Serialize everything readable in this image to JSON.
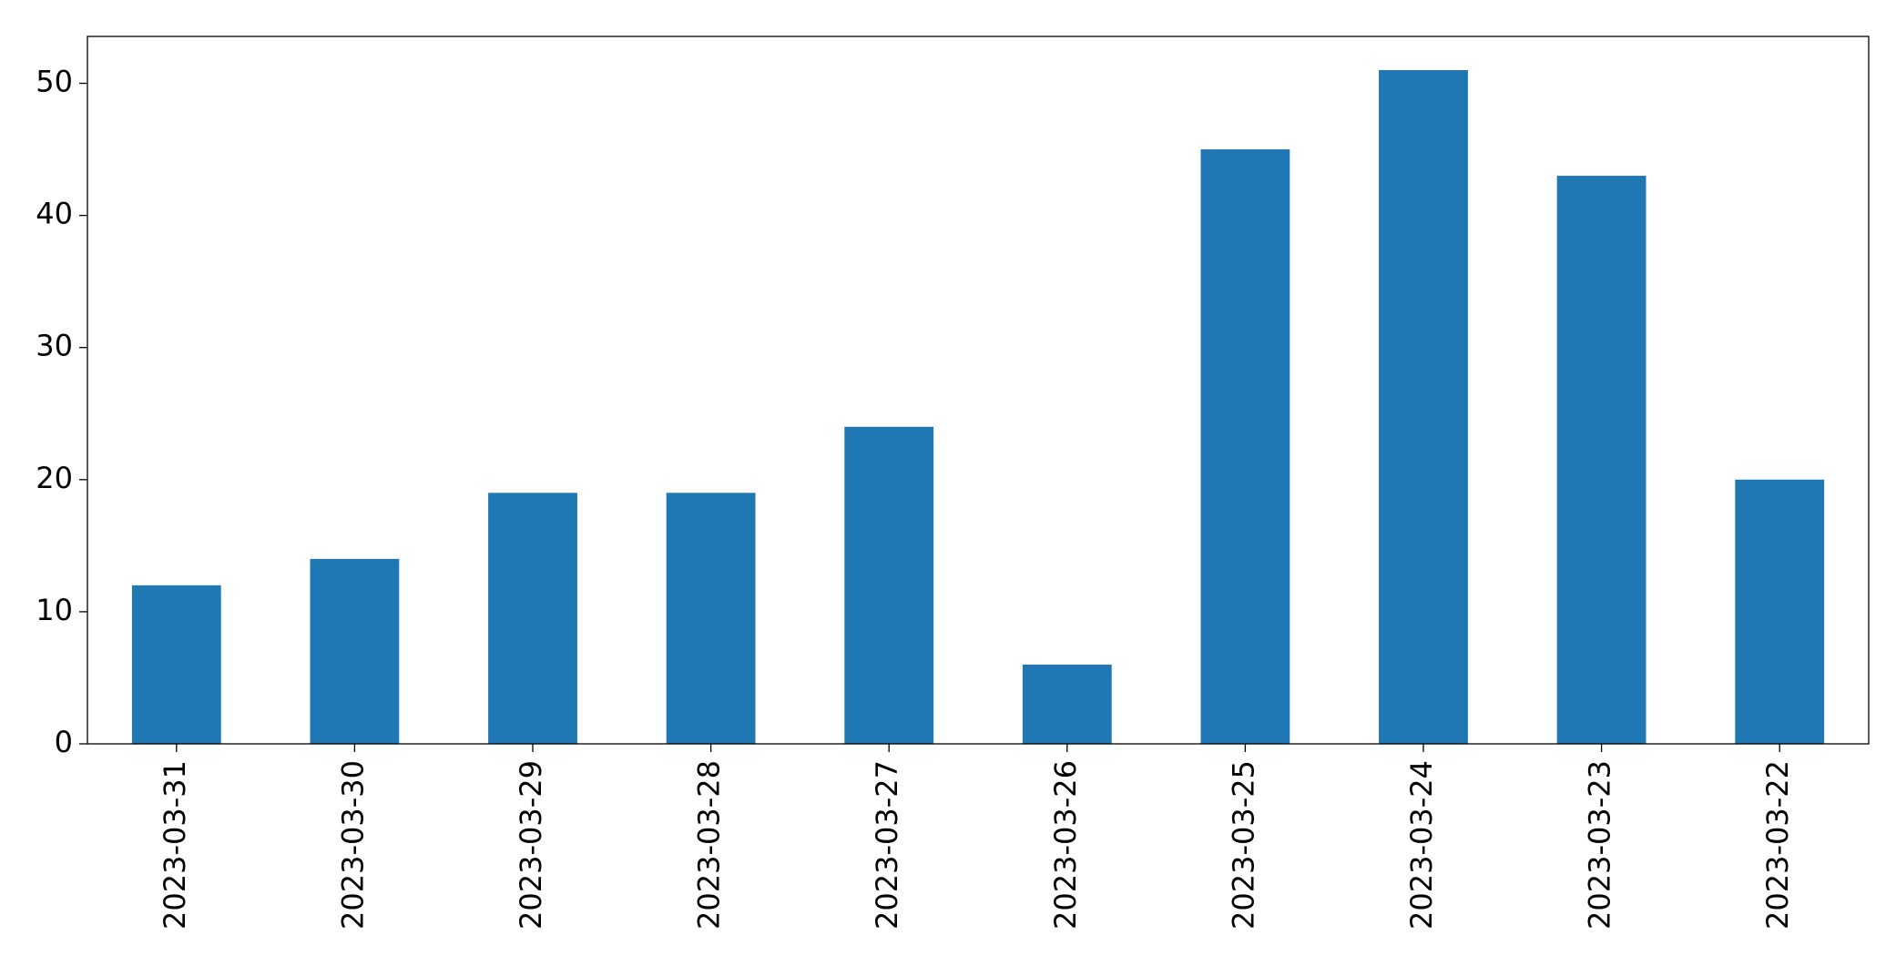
{
  "chart_data": {
    "type": "bar",
    "categories": [
      "2023-03-31",
      "2023-03-30",
      "2023-03-29",
      "2023-03-28",
      "2023-03-27",
      "2023-03-26",
      "2023-03-25",
      "2023-03-24",
      "2023-03-23",
      "2023-03-22"
    ],
    "values": [
      12,
      14,
      19,
      19,
      24,
      6,
      45,
      51,
      43,
      20
    ],
    "color": "#1f77b4",
    "ylim": [
      0,
      53.55
    ],
    "yticks": [
      0,
      10,
      20,
      30,
      40,
      50
    ],
    "grid": false
  }
}
